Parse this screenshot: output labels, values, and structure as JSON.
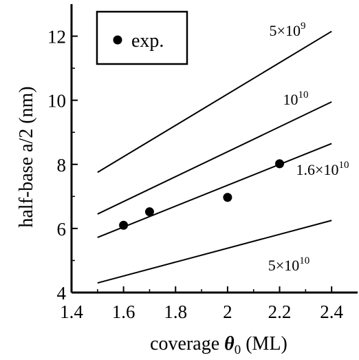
{
  "chart_data": {
    "type": "scatter",
    "title": "",
    "xlabel_prefix": "coverage ",
    "xlabel_symbol": "θ",
    "xlabel_subscript": "0",
    "xlabel_suffix": " (ML)",
    "ylabel": "half-base a/2 (nm)",
    "xlim": [
      1.4,
      2.5
    ],
    "ylim": [
      4,
      13
    ],
    "xticks": [
      1.4,
      1.6,
      1.8,
      2,
      2.2,
      2.4
    ],
    "xtick_labels": [
      "1.4",
      "1.6",
      "1.8",
      "2",
      "2.2",
      "2.4"
    ],
    "yticks": [
      4,
      6,
      8,
      10,
      12
    ],
    "ytick_labels": [
      "4",
      "6",
      "8",
      "10",
      "12"
    ],
    "grid": false,
    "legend_position": "top-left",
    "legend_label": "exp.",
    "scatter": {
      "name": "exp.",
      "points": [
        {
          "x": 1.6,
          "y": 6.1
        },
        {
          "x": 1.7,
          "y": 6.52
        },
        {
          "x": 2.0,
          "y": 6.97
        },
        {
          "x": 2.2,
          "y": 8.02
        }
      ]
    },
    "lines": [
      {
        "label_base": "5×10",
        "label_exp": "9",
        "x": [
          1.5,
          2.4
        ],
        "y": [
          7.75,
          12.15
        ]
      },
      {
        "label_base": "10",
        "label_exp": "10",
        "x": [
          1.5,
          2.4
        ],
        "y": [
          6.45,
          9.95
        ]
      },
      {
        "label_base": "1.6×10",
        "label_exp": "10",
        "x": [
          1.5,
          2.4
        ],
        "y": [
          5.72,
          8.65
        ]
      },
      {
        "label_base": "5×10",
        "label_exp": "10",
        "x": [
          1.5,
          2.4
        ],
        "y": [
          4.3,
          6.25
        ]
      }
    ]
  }
}
